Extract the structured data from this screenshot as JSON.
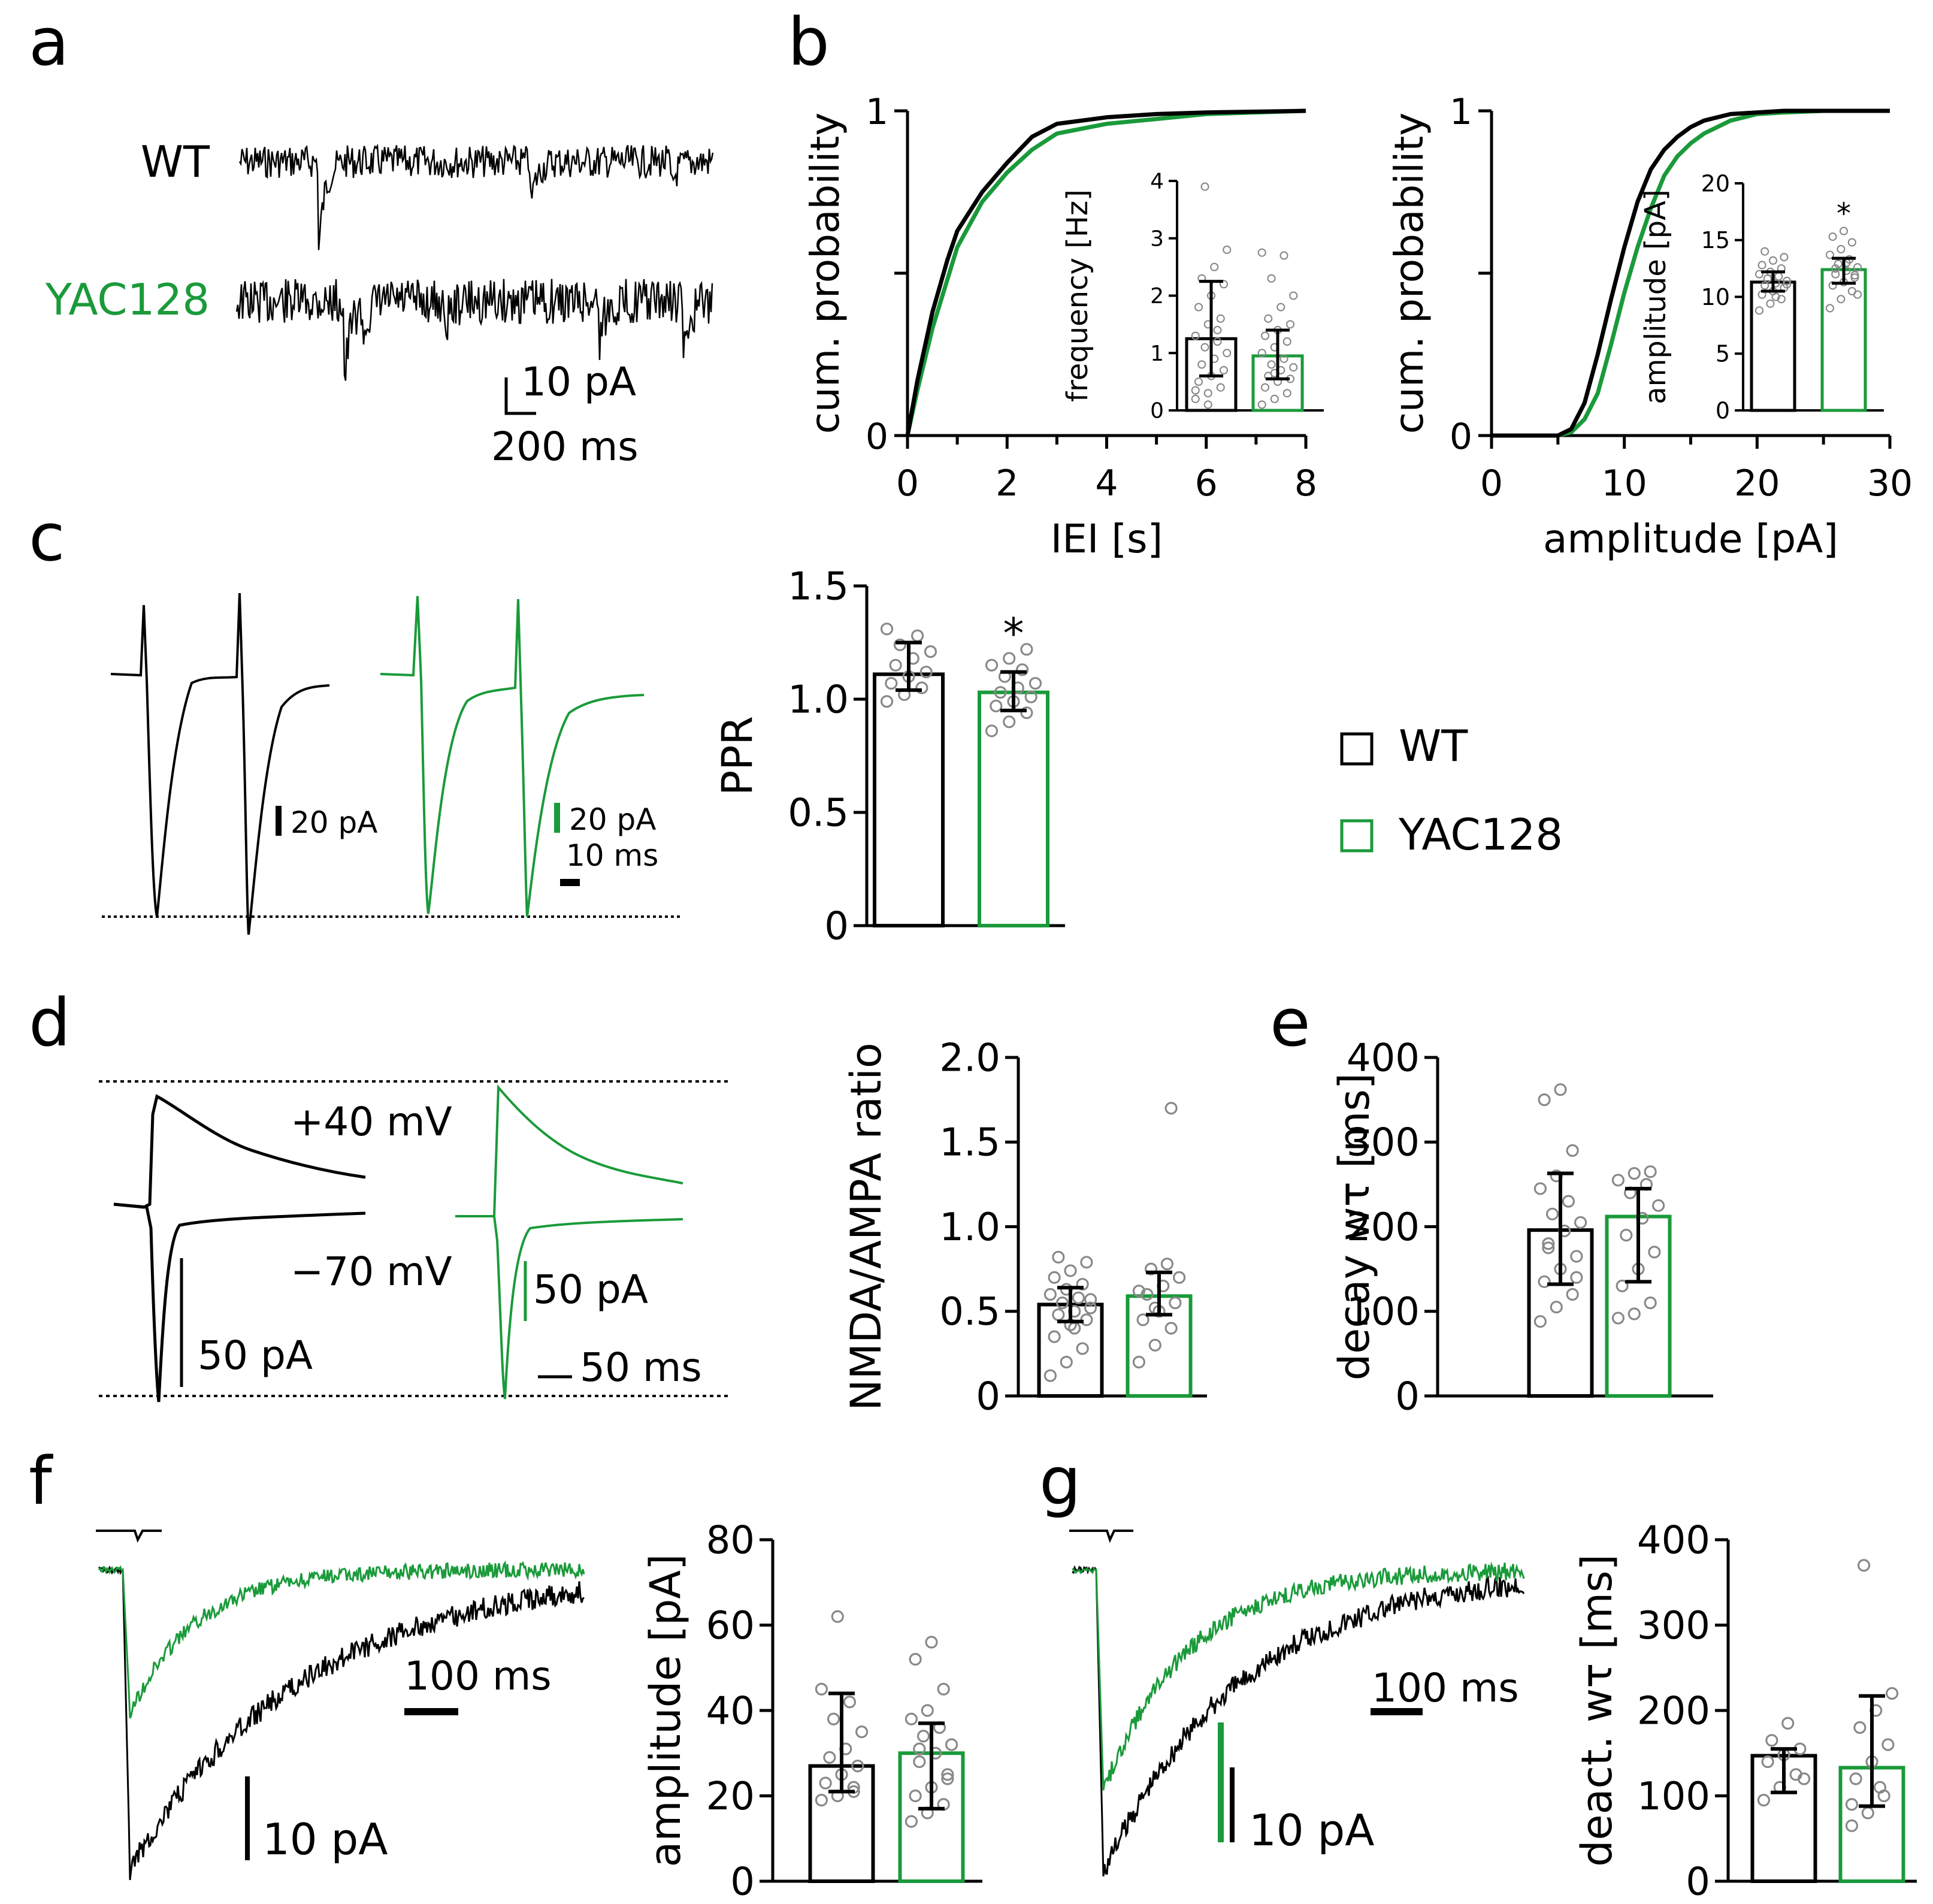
{
  "colors": {
    "wt": "#000000",
    "yac": "#1a9a3a",
    "dot": "#888888"
  },
  "panel_labels": {
    "a": "a",
    "b": "b",
    "c": "c",
    "d": "d",
    "e": "e",
    "f": "f",
    "g": "g"
  },
  "panel_a": {
    "wt_label": "WT",
    "yac_label": "YAC128",
    "scale_y": "10 pA",
    "scale_x": "200 ms"
  },
  "panel_c": {
    "scale_wt": "20 pA",
    "scale_yac": "20 pA",
    "scale_time": "10 ms"
  },
  "panel_d": {
    "label_pos": "+40 mV",
    "label_neg": "−70 mV",
    "scale_wt": "50 pA",
    "scale_yac": "50 pA",
    "scale_time": "50 ms"
  },
  "panel_f": {
    "scale_time": "100 ms",
    "scale_amp": "10 pA"
  },
  "panel_g": {
    "scale_time": "100 ms",
    "scale_amp": "10 pA"
  },
  "legend": {
    "wt": "WT",
    "yac": "YAC128"
  },
  "chart_data": [
    {
      "id": "b-iei-cdf",
      "type": "line",
      "xlabel": "IEI [s]",
      "ylabel": "cum. probability",
      "xlim": [
        0,
        8
      ],
      "ylim": [
        0,
        1
      ],
      "xticks": [
        "0",
        "2",
        "4",
        "6",
        "8"
      ],
      "yticks": [
        "0",
        "1"
      ],
      "series": [
        {
          "name": "WT",
          "x": [
            0,
            0.2,
            0.5,
            0.8,
            1.0,
            1.5,
            2.0,
            2.5,
            3.0,
            4.0,
            5.0,
            6.0,
            8.0
          ],
          "y": [
            0,
            0.17,
            0.38,
            0.54,
            0.63,
            0.75,
            0.84,
            0.92,
            0.96,
            0.98,
            0.99,
            0.995,
            1.0
          ]
        },
        {
          "name": "YAC128",
          "x": [
            0,
            0.2,
            0.5,
            0.8,
            1.0,
            1.5,
            2.0,
            2.5,
            3.0,
            4.0,
            5.0,
            6.0,
            8.0
          ],
          "y": [
            0,
            0.14,
            0.33,
            0.48,
            0.58,
            0.72,
            0.81,
            0.88,
            0.93,
            0.96,
            0.975,
            0.99,
            1.0
          ]
        }
      ]
    },
    {
      "id": "b-freq-inset",
      "type": "bar",
      "ylabel": "frequency [Hz]",
      "ylim": [
        0,
        4
      ],
      "yticks": [
        "0",
        "1",
        "2",
        "3",
        "4"
      ],
      "categories": [
        "WT",
        "YAC128"
      ],
      "values": [
        1.25,
        0.95
      ],
      "err_low": [
        0.6,
        0.55
      ],
      "err_high": [
        2.25,
        1.4
      ],
      "points": [
        [
          0.2,
          0.3,
          0.4,
          0.5,
          0.6,
          0.7,
          0.8,
          0.9,
          1.0,
          1.1,
          1.2,
          1.3,
          1.5,
          1.6,
          1.8,
          2.0,
          2.2,
          2.3,
          2.5,
          2.8,
          3.9,
          1.4,
          0.35,
          0.1
        ],
        [
          0.1,
          0.2,
          0.3,
          0.4,
          0.5,
          0.55,
          0.6,
          0.7,
          0.75,
          0.8,
          0.9,
          1.0,
          1.1,
          1.2,
          1.3,
          1.4,
          1.5,
          1.6,
          1.8,
          2.0,
          2.3,
          2.7,
          2.75,
          0.65
        ]
      ]
    },
    {
      "id": "b-amp-cdf",
      "type": "line",
      "xlabel": "amplitude [pA]",
      "ylabel": "cum. probability",
      "xlim": [
        0,
        30
      ],
      "ylim": [
        0,
        1
      ],
      "xticks": [
        "0",
        "10",
        "20",
        "30"
      ],
      "yticks": [
        "0",
        "1"
      ],
      "series": [
        {
          "name": "WT",
          "x": [
            0,
            5,
            6,
            7,
            8,
            9,
            10,
            11,
            12,
            13,
            14,
            15,
            16,
            18,
            20,
            22,
            25,
            30
          ],
          "y": [
            0,
            0,
            0.02,
            0.1,
            0.25,
            0.42,
            0.58,
            0.72,
            0.82,
            0.88,
            0.92,
            0.95,
            0.97,
            0.99,
            0.995,
            1.0,
            1.0,
            1.0
          ]
        },
        {
          "name": "YAC128",
          "x": [
            0,
            5,
            6,
            7,
            8,
            9,
            10,
            11,
            12,
            13,
            14,
            15,
            16,
            18,
            20,
            22,
            25,
            30
          ],
          "y": [
            0,
            0,
            0.01,
            0.05,
            0.13,
            0.28,
            0.44,
            0.58,
            0.7,
            0.8,
            0.86,
            0.9,
            0.93,
            0.97,
            0.99,
            0.995,
            1.0,
            1.0
          ]
        }
      ]
    },
    {
      "id": "b-amp-inset",
      "type": "bar",
      "ylabel": "amplitude [pA]",
      "ylim": [
        0,
        20
      ],
      "yticks": [
        "0",
        "5",
        "10",
        "15",
        "20"
      ],
      "annotation": "*",
      "categories": [
        "WT",
        "YAC128"
      ],
      "values": [
        11.3,
        12.4
      ],
      "err_low": [
        10.5,
        11.2
      ],
      "err_high": [
        12.2,
        13.4
      ],
      "points": [
        [
          8.8,
          9.4,
          9.8,
          10.2,
          10.5,
          10.8,
          11.0,
          11.2,
          11.4,
          11.6,
          11.8,
          12.0,
          12.2,
          12.5,
          12.8,
          13.2,
          13.5,
          14.0,
          10.0,
          11.1
        ],
        [
          9.0,
          9.8,
          10.5,
          11.0,
          11.3,
          11.7,
          12.0,
          12.3,
          12.6,
          12.9,
          13.3,
          13.7,
          14.2,
          14.8,
          15.3,
          15.8,
          11.9,
          12.5,
          13.0,
          10.2
        ]
      ]
    },
    {
      "id": "c-ppr",
      "type": "bar",
      "ylabel": "PPR",
      "ylim": [
        0,
        1.5
      ],
      "yticks": [
        "0",
        "0.5",
        "1.0",
        "1.5"
      ],
      "annotation": "*",
      "categories": [
        "WT",
        "YAC128"
      ],
      "values": [
        1.11,
        1.03
      ],
      "err_low": [
        1.04,
        0.95
      ],
      "err_high": [
        1.25,
        1.12
      ],
      "points": [
        [
          0.99,
          1.02,
          1.05,
          1.07,
          1.1,
          1.12,
          1.15,
          1.18,
          1.21,
          1.24,
          1.28,
          1.31
        ],
        [
          0.86,
          0.9,
          0.94,
          0.97,
          0.99,
          1.01,
          1.03,
          1.05,
          1.07,
          1.1,
          1.13,
          1.15,
          1.18,
          1.22
        ]
      ]
    },
    {
      "id": "d-nmda-ampa",
      "type": "bar",
      "ylabel": "NMDA/AMPA ratio",
      "ylim": [
        0,
        2.0
      ],
      "yticks": [
        "0",
        "0.5",
        "1.0",
        "1.5",
        "2.0"
      ],
      "categories": [
        "WT",
        "YAC128"
      ],
      "values": [
        0.54,
        0.59
      ],
      "err_low": [
        0.44,
        0.48
      ],
      "err_high": [
        0.64,
        0.73
      ],
      "points": [
        [
          0.12,
          0.2,
          0.28,
          0.35,
          0.42,
          0.45,
          0.48,
          0.5,
          0.52,
          0.55,
          0.58,
          0.6,
          0.63,
          0.66,
          0.7,
          0.74,
          0.79,
          0.82,
          0.4,
          0.57
        ],
        [
          0.2,
          0.3,
          0.4,
          0.45,
          0.5,
          0.55,
          0.6,
          0.65,
          0.7,
          0.75,
          0.78,
          0.62,
          0.52,
          1.7
        ]
      ]
    },
    {
      "id": "e-decay",
      "type": "bar",
      "ylabel": "decay wτ [ms]",
      "ylim": [
        0,
        400
      ],
      "yticks": [
        "0",
        "100",
        "200",
        "300",
        "400"
      ],
      "categories": [
        "WT",
        "YAC128"
      ],
      "values": [
        196,
        212
      ],
      "err_low": [
        132,
        135
      ],
      "err_high": [
        263,
        245
      ],
      "points": [
        [
          88,
          105,
          120,
          135,
          150,
          165,
          180,
          195,
          205,
          215,
          230,
          245,
          260,
          290,
          350,
          362,
          140,
          175
        ],
        [
          92,
          97,
          110,
          130,
          150,
          170,
          190,
          210,
          225,
          240,
          250,
          255,
          263,
          265
        ]
      ]
    },
    {
      "id": "f-amplitude",
      "type": "bar",
      "ylabel": "amplitude [pA]",
      "ylim": [
        0,
        80
      ],
      "yticks": [
        "0",
        "20",
        "40",
        "60",
        "80"
      ],
      "categories": [
        "WT",
        "YAC128"
      ],
      "values": [
        27,
        30
      ],
      "err_low": [
        21,
        17
      ],
      "err_high": [
        44,
        37
      ],
      "points": [
        [
          19,
          20,
          21,
          23,
          25,
          27,
          29,
          31,
          35,
          38,
          42,
          45,
          62,
          22
        ],
        [
          14,
          16,
          18,
          20,
          22,
          25,
          28,
          30,
          32,
          34,
          36,
          38,
          40,
          45,
          52,
          56,
          24,
          31
        ]
      ]
    },
    {
      "id": "g-deact",
      "type": "bar",
      "ylabel": "deact. wτ [ms]",
      "ylim": [
        0,
        400
      ],
      "yticks": [
        "0",
        "100",
        "200",
        "300",
        "400"
      ],
      "categories": [
        "WT",
        "YAC128"
      ],
      "values": [
        147,
        133
      ],
      "err_low": [
        104,
        88
      ],
      "err_high": [
        155,
        217
      ],
      "points": [
        [
          95,
          110,
          125,
          140,
          148,
          155,
          165,
          185,
          120
        ],
        [
          65,
          80,
          100,
          120,
          140,
          160,
          180,
          200,
          220,
          370,
          110,
          90
        ]
      ]
    }
  ]
}
